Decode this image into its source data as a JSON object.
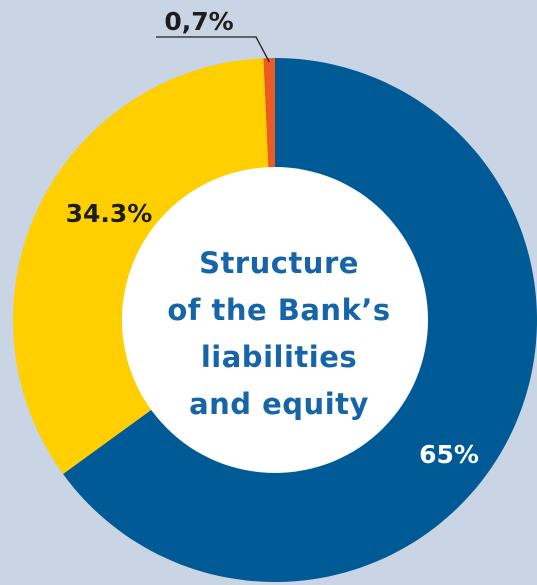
{
  "chart_data": {
    "type": "pie",
    "title": "Structure of the Bank’s liabilities and equity",
    "title_lines": [
      "Structure",
      "of the Bank’s",
      "liabilities",
      "and equity"
    ],
    "categories": [
      "",
      "",
      ""
    ],
    "values": [
      65,
      34.3,
      0.7
    ],
    "labels": [
      "65%",
      "34.3%",
      "0,7%"
    ],
    "colors": [
      "#005a96",
      "#ffcf00",
      "#ee5a24"
    ],
    "donut": true
  },
  "colors": {
    "background": "#c9d4e4",
    "hole": "#ffffff",
    "title": "#1565a8",
    "label_light": "#ffffff",
    "label_dark": "#1d1d1b"
  }
}
